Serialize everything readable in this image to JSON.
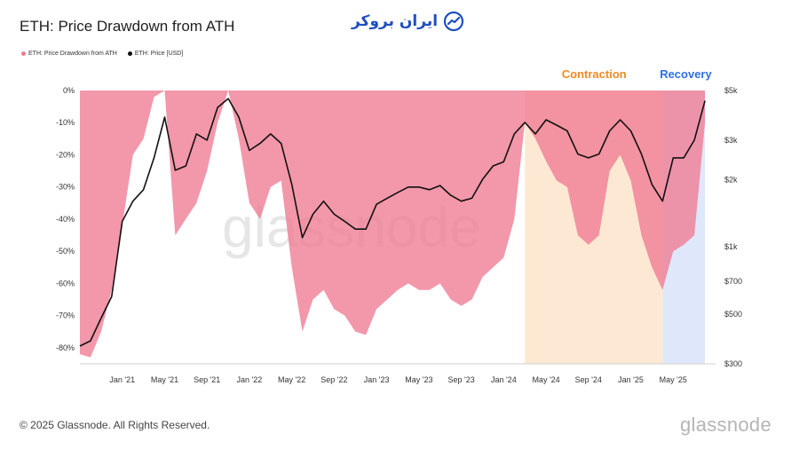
{
  "header": {
    "title": "ETH: Price Drawdown from ATH",
    "logo_text": "ایران بروکر"
  },
  "legend": [
    {
      "label": "ETH: Price Drawdown from ATH",
      "color": "#f07a92"
    },
    {
      "label": "ETH: Price [USD]",
      "color": "#111111"
    }
  ],
  "regions": {
    "contraction": {
      "label": "Contraction",
      "color": "#f08a24",
      "fill": "#fde9d3",
      "start": "2024-03",
      "end": "2025-04"
    },
    "recovery": {
      "label": "Recovery",
      "color": "#2f6fe0",
      "fill": "#dfe8fb",
      "start": "2025-04",
      "end": "2025-08"
    }
  },
  "footer": {
    "copyright": "© 2025 Glassnode. All Rights Reserved.",
    "brand": "glassnode",
    "watermark": "glassnode"
  },
  "chart_data": {
    "type": "area",
    "title": "ETH: Price Drawdown from ATH",
    "x_ticks": [
      "Jan '21",
      "May '21",
      "Sep '21",
      "Jan '22",
      "May '22",
      "Sep '22",
      "Jan '23",
      "May '23",
      "Sep '23",
      "Jan '24",
      "May '24",
      "Sep '24",
      "Jan '25",
      "May '25"
    ],
    "y_left_ticks": [
      "0%",
      "-10%",
      "-20%",
      "-30%",
      "-40%",
      "-50%",
      "-60%",
      "-70%",
      "-80%"
    ],
    "y_right_ticks": [
      "$5k",
      "$3k",
      "$2k",
      "$1k",
      "$700",
      "$500",
      "$300"
    ],
    "y_left_range": [
      -85,
      0
    ],
    "y_right_range": [
      300,
      5000
    ],
    "y_right_scale": "log",
    "x": [
      "2020-09",
      "2020-10",
      "2020-11",
      "2020-12",
      "2021-01",
      "2021-02",
      "2021-03",
      "2021-04",
      "2021-05",
      "2021-06",
      "2021-07",
      "2021-08",
      "2021-09",
      "2021-10",
      "2021-11",
      "2021-12",
      "2022-01",
      "2022-02",
      "2022-03",
      "2022-04",
      "2022-05",
      "2022-06",
      "2022-07",
      "2022-08",
      "2022-09",
      "2022-10",
      "2022-11",
      "2022-12",
      "2023-01",
      "2023-02",
      "2023-03",
      "2023-04",
      "2023-05",
      "2023-06",
      "2023-07",
      "2023-08",
      "2023-09",
      "2023-10",
      "2023-11",
      "2023-12",
      "2024-01",
      "2024-02",
      "2024-03",
      "2024-04",
      "2024-05",
      "2024-06",
      "2024-07",
      "2024-08",
      "2024-09",
      "2024-10",
      "2024-11",
      "2024-12",
      "2025-01",
      "2025-02",
      "2025-03",
      "2025-04",
      "2025-05",
      "2025-06",
      "2025-07",
      "2025-08"
    ],
    "series": [
      {
        "name": "ETH: Price Drawdown from ATH",
        "values": [
          -82,
          -83,
          -75,
          -62,
          -42,
          -20,
          -15,
          -2,
          0,
          -45,
          -40,
          -35,
          -25,
          -10,
          0,
          -15,
          -35,
          -40,
          -30,
          -28,
          -55,
          -75,
          -65,
          -62,
          -68,
          -70,
          -75,
          -76,
          -68,
          -65,
          -62,
          -60,
          -62,
          -62,
          -60,
          -65,
          -67,
          -65,
          -58,
          -55,
          -52,
          -40,
          -10,
          -15,
          -22,
          -28,
          -30,
          -45,
          -48,
          -45,
          -25,
          -20,
          -28,
          -45,
          -55,
          -62,
          -50,
          -48,
          -45,
          -10
        ]
      },
      {
        "name": "ETH: Price [USD]",
        "values": [
          360,
          380,
          480,
          600,
          1300,
          1600,
          1800,
          2500,
          3800,
          2200,
          2300,
          3200,
          3000,
          4200,
          4600,
          3800,
          2700,
          2900,
          3200,
          2900,
          1900,
          1100,
          1400,
          1600,
          1400,
          1300,
          1200,
          1200,
          1550,
          1650,
          1750,
          1850,
          1850,
          1800,
          1880,
          1700,
          1600,
          1650,
          2000,
          2300,
          2400,
          3200,
          3600,
          3200,
          3700,
          3500,
          3300,
          2600,
          2500,
          2600,
          3300,
          3700,
          3300,
          2600,
          1900,
          1600,
          2500,
          2500,
          3000,
          4500
        ]
      }
    ]
  }
}
